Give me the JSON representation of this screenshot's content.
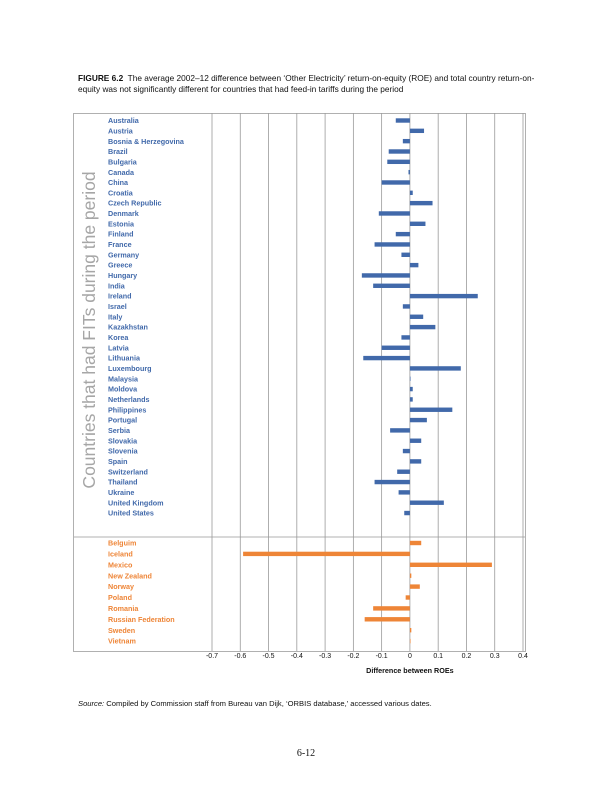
{
  "caption": {
    "label": "FIGURE 6.2",
    "text": "The average 2002–12 difference between ‘Other Electricity’ return-on-equity (ROE) and total country return-on-equity was not significantly different for countries that had feed-in tariffs during the period"
  },
  "source": {
    "label": "Source:",
    "text": "Compiled by Commission staff from Bureau van Dijk, ‘ORBIS database,’ accessed various dates."
  },
  "page_number": "6-12",
  "chart_data": {
    "type": "bar",
    "orientation": "horizontal",
    "title": "",
    "xlabel": "Difference between ROEs",
    "ylabel": "Countries that had FITs during the period",
    "xlim": [
      -0.7,
      0.4
    ],
    "xticks": [
      "-0.7",
      "-0.6",
      "-0.5",
      "-0.4",
      "-0.3",
      "-0.2",
      "-0.1",
      "0",
      "0.1",
      "0.2",
      "0.3",
      "0.4"
    ],
    "grid": "vertical",
    "colors": {
      "fit": "#4169aa",
      "non_fit": "#ee8537",
      "ylabel": "#a6a6a6"
    },
    "groups": [
      {
        "color_key": "fit",
        "categories": [
          "Australia",
          "Austria",
          "Bosnia & Herzegovina",
          "Brazil",
          "Bulgaria",
          "Canada",
          "China",
          "Croatia",
          "Czech Republic",
          "Denmark",
          "Estonia",
          "Finland",
          "France",
          "Germany",
          "Greece",
          "Hungary",
          "India",
          "Ireland",
          "Israel",
          "Italy",
          "Kazakhstan",
          "Korea",
          "Latvia",
          "Lithuania",
          "Luxembourg",
          "Malaysia",
          "Moldova",
          "Netherlands",
          "Philippines",
          "Portugal",
          "Serbia",
          "Slovakia",
          "Slovenia",
          "Spain",
          "Switzerland",
          "Thailand",
          "Ukraine",
          "United Kingdom",
          "United States"
        ],
        "values": [
          -0.05,
          0.05,
          -0.025,
          -0.075,
          -0.08,
          -0.005,
          -0.1,
          0.01,
          0.08,
          -0.11,
          0.055,
          -0.05,
          -0.125,
          -0.03,
          0.03,
          -0.17,
          -0.13,
          0.24,
          -0.025,
          0.047,
          0.09,
          -0.03,
          -0.1,
          -0.165,
          0.18,
          0.001,
          0.01,
          0.01,
          0.15,
          0.06,
          -0.07,
          0.04,
          -0.025,
          0.04,
          -0.045,
          -0.125,
          -0.04,
          0.12,
          -0.02
        ]
      },
      {
        "color_key": "non_fit",
        "categories": [
          "Belguim",
          "Iceland",
          "Mexico",
          "New Zealand",
          "Norway",
          "Poland",
          "Romania",
          "Russian Federation",
          "Sweden",
          "Vietnam"
        ],
        "values": [
          0.04,
          -0.59,
          0.29,
          0.005,
          0.035,
          -0.015,
          -0.13,
          -0.16,
          0.005,
          0.001
        ]
      }
    ]
  }
}
